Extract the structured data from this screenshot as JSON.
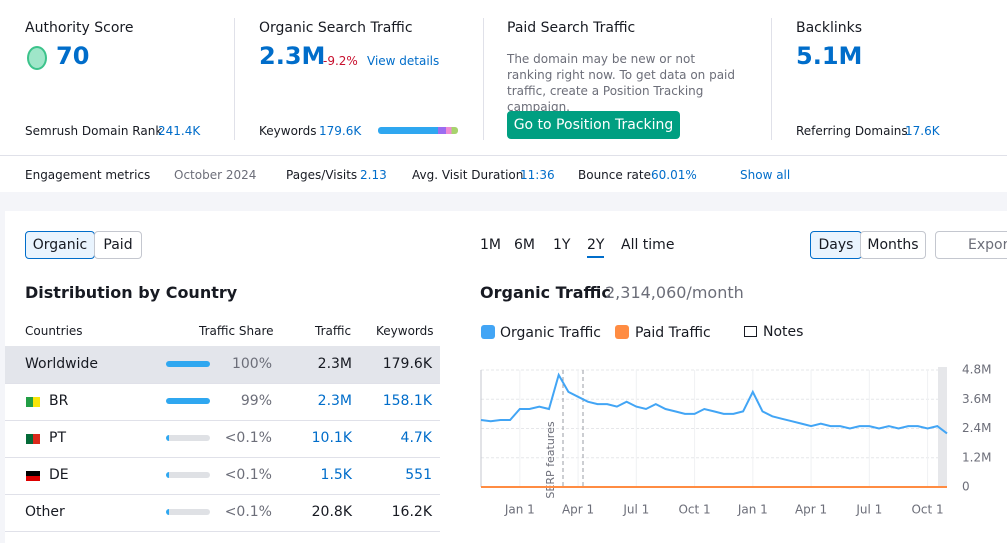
{
  "overview": {
    "authority": {
      "title": "Authority Score",
      "value": "70",
      "footer_label": "Semrush Domain Rank",
      "footer_value": "241.4K"
    },
    "organic": {
      "title": "Organic Search Traffic",
      "value": "2.3M",
      "change": "-9.2%",
      "link": "View details",
      "footer_label": "Keywords",
      "footer_value": "179.6K"
    },
    "paid": {
      "title": "Paid Search Traffic",
      "text": "The domain may be new or not ranking right now. To get data on paid traffic, create a Position Tracking campaign.",
      "button": "Go to Position Tracking"
    },
    "backlinks": {
      "title": "Backlinks",
      "value": "5.1M",
      "footer_label": "Referring Domains",
      "footer_value": "17.6K"
    }
  },
  "engagement": {
    "label": "Engagement metrics",
    "date": "October 2024",
    "items": [
      {
        "label": "Pages/Visits",
        "value": "2.13"
      },
      {
        "label": "Avg. Visit Duration",
        "value": "11:36"
      },
      {
        "label": "Bounce rate",
        "value": "60.01%"
      }
    ],
    "show_all": "Show all"
  },
  "tabs": [
    "Organic",
    "Paid"
  ],
  "ranges": [
    "1M",
    "6M",
    "1Y",
    "2Y",
    "All time"
  ],
  "granularity": [
    "Days",
    "Months"
  ],
  "export": "Export",
  "table": {
    "title": "Distribution by Country",
    "headers": [
      "Countries",
      "Traffic Share",
      "Traffic",
      "Keywords"
    ],
    "rows": [
      [
        "Worldwide",
        "100%",
        "2.3M",
        "179.6K"
      ],
      [
        "BR",
        "99%",
        "2.3M",
        "158.1K"
      ],
      [
        "PT",
        "<0.1%",
        "10.1K",
        "4.7K"
      ],
      [
        "DE",
        "<0.1%",
        "1.5K",
        "551"
      ],
      [
        "Other",
        "<0.1%",
        "20.8K",
        "16.2K"
      ]
    ]
  },
  "chart_data": {
    "type": "line",
    "title": "Organic Traffic",
    "subtitle": "2,314,060/month",
    "notes": "Notes",
    "annotation": "SERP features",
    "categories": [
      null,
      null,
      null,
      null,
      "Jan 1",
      null,
      null,
      null,
      null,
      null,
      "Apr 1",
      null,
      null,
      null,
      null,
      null,
      "Jul 1",
      null,
      null,
      null,
      null,
      null,
      "Oct 1",
      null,
      null,
      null,
      null,
      null,
      "Jan 1",
      null,
      null,
      null,
      null,
      null,
      "Apr 1",
      null,
      null,
      null,
      null,
      null,
      "Jul 1",
      null,
      null,
      null,
      null,
      null,
      "Oct 1",
      null,
      null
    ],
    "series": [
      {
        "name": "Organic Traffic",
        "color": "#42a5f5",
        "values": [
          2.75,
          2.7,
          2.75,
          2.75,
          3.2,
          3.2,
          3.3,
          3.2,
          4.6,
          3.9,
          3.7,
          3.5,
          3.4,
          3.4,
          3.3,
          3.5,
          3.3,
          3.2,
          3.4,
          3.2,
          3.1,
          3.0,
          3.0,
          3.2,
          3.1,
          3.0,
          3.0,
          3.1,
          3.9,
          3.1,
          2.9,
          2.8,
          2.7,
          2.6,
          2.5,
          2.6,
          2.5,
          2.5,
          2.4,
          2.5,
          2.5,
          2.4,
          2.5,
          2.4,
          2.5,
          2.5,
          2.4,
          2.5,
          2.2
        ]
      },
      {
        "name": "Paid Traffic",
        "color": "#ff8c42",
        "values": [
          0,
          0,
          0,
          0,
          0,
          0,
          0,
          0,
          0,
          0,
          0,
          0,
          0,
          0,
          0,
          0,
          0,
          0,
          0,
          0,
          0,
          0,
          0,
          0,
          0,
          0,
          0,
          0,
          0,
          0,
          0,
          0,
          0,
          0,
          0,
          0,
          0,
          0,
          0,
          0,
          0,
          0,
          0,
          0,
          0,
          0,
          0,
          0,
          0
        ]
      }
    ],
    "ylim": [
      0,
      4.8
    ],
    "yticks": [
      0,
      {
        "value": 1.2,
        "label": "1.2M"
      },
      {
        "value": 2.4,
        "label": "2.4M"
      },
      {
        "value": 3.6,
        "label": "3.6M"
      },
      {
        "value": 4.8,
        "label": "4.8M"
      }
    ],
    "grid": true
  }
}
